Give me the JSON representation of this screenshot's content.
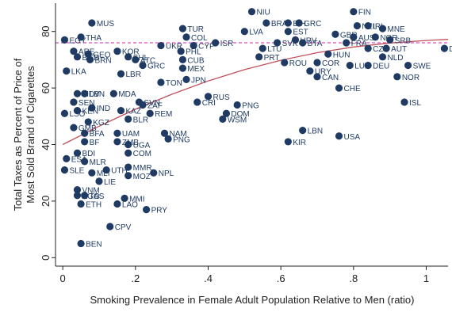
{
  "chart_data": {
    "type": "scatter",
    "xlabel": "Smoking Prevalence in Female Adult Population Relative to Men (ratio)",
    "ylabel_lines": [
      "Total Taxes as Percent of Price of",
      "Most Sold Brand of Cigarettes"
    ],
    "xlim": [
      -0.02,
      1.06
    ],
    "ylim": [
      -3,
      90
    ],
    "x_ticks": [
      {
        "v": 0,
        "label": "0"
      },
      {
        "v": 0.2,
        "label": ".2"
      },
      {
        "v": 0.4,
        "label": ".4"
      },
      {
        "v": 0.6,
        "label": ".6"
      },
      {
        "v": 0.8,
        "label": ".8"
      },
      {
        "v": 1,
        "label": "1"
      }
    ],
    "y_ticks": [
      {
        "v": 0,
        "label": "0"
      },
      {
        "v": 20,
        "label": "20"
      },
      {
        "v": 40,
        "label": "40"
      },
      {
        "v": 60,
        "label": "60"
      },
      {
        "v": 80,
        "label": "80"
      }
    ],
    "grid": false,
    "reference_line": {
      "y": 76,
      "color": "#d94fc4",
      "style": "dashed"
    },
    "fit_curve": {
      "color": "#c0505a",
      "x": [
        0,
        0.1,
        0.2,
        0.3,
        0.4,
        0.5,
        0.6,
        0.7,
        0.8,
        0.9,
        1.0,
        1.06
      ],
      "y": [
        40,
        46.5,
        52.5,
        57.8,
        62.5,
        66.5,
        69.8,
        72.5,
        74.5,
        75.9,
        76.8,
        77.2
      ]
    },
    "marker_color": "#1f3b63",
    "points": [
      {
        "x": 0.08,
        "y": 83,
        "label": "MUS"
      },
      {
        "x": 0.05,
        "y": 78,
        "label": "THA"
      },
      {
        "x": 0.005,
        "y": 77,
        "label": "EGY"
      },
      {
        "x": 0.03,
        "y": 73,
        "label": "ARE"
      },
      {
        "x": 0.04,
        "y": 71,
        "label": "BGD"
      },
      {
        "x": 0.07,
        "y": 72,
        "label": "GEO"
      },
      {
        "x": 0.075,
        "y": 70,
        "label": "BRN"
      },
      {
        "x": 0.01,
        "y": 66,
        "label": "LKA"
      },
      {
        "x": 0.15,
        "y": 73,
        "label": "KOR"
      },
      {
        "x": 0.18,
        "y": 71,
        "label": "SHL"
      },
      {
        "x": 0.2,
        "y": 70,
        "label": "ATC"
      },
      {
        "x": 0.22,
        "y": 68,
        "label": "GRC2"
      },
      {
        "x": 0.16,
        "y": 65,
        "label": "LBR"
      },
      {
        "x": 0.27,
        "y": 75,
        "label": "UKR"
      },
      {
        "x": 0.33,
        "y": 81,
        "label": "TUR"
      },
      {
        "x": 0.34,
        "y": 78,
        "label": "COL"
      },
      {
        "x": 0.36,
        "y": 75,
        "label": "CYP"
      },
      {
        "x": 0.42,
        "y": 76,
        "label": "ISR"
      },
      {
        "x": 0.325,
        "y": 73,
        "label": "PHL"
      },
      {
        "x": 0.33,
        "y": 70,
        "label": "CUB"
      },
      {
        "x": 0.33,
        "y": 67,
        "label": "MEX"
      },
      {
        "x": 0.34,
        "y": 63,
        "label": "JPN"
      },
      {
        "x": 0.27,
        "y": 62,
        "label": "TON"
      },
      {
        "x": 0.04,
        "y": 58,
        "label": "MDV"
      },
      {
        "x": 0.06,
        "y": 58,
        "label": "LBN2"
      },
      {
        "x": 0.14,
        "y": 58,
        "label": "MDA"
      },
      {
        "x": 0.03,
        "y": 55,
        "label": "SEN"
      },
      {
        "x": 0.08,
        "y": 53,
        "label": "IND"
      },
      {
        "x": 0.04,
        "y": 52,
        "label": "KEN"
      },
      {
        "x": 0.005,
        "y": 51,
        "label": "LSO"
      },
      {
        "x": 0.16,
        "y": 52,
        "label": "KAZ"
      },
      {
        "x": 0.21,
        "y": 55,
        "label": "SVN"
      },
      {
        "x": 0.22,
        "y": 54,
        "label": "ZAF"
      },
      {
        "x": 0.18,
        "y": 49,
        "label": "BLR"
      },
      {
        "x": 0.24,
        "y": 51,
        "label": "REM"
      },
      {
        "x": 0.07,
        "y": 48,
        "label": "KGZ"
      },
      {
        "x": 0.03,
        "y": 46,
        "label": "GMB"
      },
      {
        "x": 0.06,
        "y": 44,
        "label": "BFA"
      },
      {
        "x": 0.06,
        "y": 41,
        "label": "BF"
      },
      {
        "x": 0.15,
        "y": 41,
        "label": "ZMB"
      },
      {
        "x": 0.18,
        "y": 40,
        "label": "UGA"
      },
      {
        "x": 0.18,
        "y": 37,
        "label": "COM"
      },
      {
        "x": 0.15,
        "y": 44,
        "label": "UAM"
      },
      {
        "x": 0.28,
        "y": 44,
        "label": "NAM"
      },
      {
        "x": 0.29,
        "y": 42,
        "label": "PNG2"
      },
      {
        "x": 0.37,
        "y": 55,
        "label": "CRI"
      },
      {
        "x": 0.4,
        "y": 57,
        "label": "RUS"
      },
      {
        "x": 0.48,
        "y": 54,
        "label": "PNG"
      },
      {
        "x": 0.45,
        "y": 51,
        "label": "DOM"
      },
      {
        "x": 0.44,
        "y": 49,
        "label": "WSM"
      },
      {
        "x": 0.01,
        "y": 35,
        "label": "ESA"
      },
      {
        "x": 0.04,
        "y": 37,
        "label": "BDI"
      },
      {
        "x": 0.06,
        "y": 34,
        "label": "MLR"
      },
      {
        "x": 0.005,
        "y": 31,
        "label": "SLE"
      },
      {
        "x": 0.08,
        "y": 30,
        "label": "MLI"
      },
      {
        "x": 0.1,
        "y": 27,
        "label": "LIE"
      },
      {
        "x": 0.12,
        "y": 31,
        "label": "UTH"
      },
      {
        "x": 0.18,
        "y": 32,
        "label": "MMR"
      },
      {
        "x": 0.18,
        "y": 29,
        "label": "MOZ"
      },
      {
        "x": 0.25,
        "y": 30,
        "label": "NPL"
      },
      {
        "x": 0.04,
        "y": 24,
        "label": "VNM"
      },
      {
        "x": 0.06,
        "y": 22,
        "label": "TAS"
      },
      {
        "x": 0.04,
        "y": 22,
        "label": "AGO"
      },
      {
        "x": 0.05,
        "y": 19,
        "label": "ETH"
      },
      {
        "x": 0.17,
        "y": 21,
        "label": "MMI"
      },
      {
        "x": 0.15,
        "y": 19,
        "label": "LAO"
      },
      {
        "x": 0.23,
        "y": 17,
        "label": "PRY"
      },
      {
        "x": 0.13,
        "y": 11,
        "label": "CPV"
      },
      {
        "x": 0.05,
        "y": 5,
        "label": "BEN"
      },
      {
        "x": 0.52,
        "y": 87,
        "label": "NIU"
      },
      {
        "x": 0.56,
        "y": 83,
        "label": "BRA"
      },
      {
        "x": 0.62,
        "y": 83,
        "label": "BIH"
      },
      {
        "x": 0.65,
        "y": 83,
        "label": "GRC"
      },
      {
        "x": 0.62,
        "y": 80,
        "label": "EST"
      },
      {
        "x": 0.5,
        "y": 80,
        "label": "LVA"
      },
      {
        "x": 0.64,
        "y": 77,
        "label": "HRV"
      },
      {
        "x": 0.59,
        "y": 76,
        "label": "SVK"
      },
      {
        "x": 0.66,
        "y": 76,
        "label": "BTA"
      },
      {
        "x": 0.55,
        "y": 74,
        "label": "LTU"
      },
      {
        "x": 0.54,
        "y": 71,
        "label": "PRT"
      },
      {
        "x": 0.61,
        "y": 69,
        "label": "ROU"
      },
      {
        "x": 0.7,
        "y": 69,
        "label": "COR"
      },
      {
        "x": 0.68,
        "y": 66,
        "label": "URY"
      },
      {
        "x": 0.7,
        "y": 64,
        "label": "CAN"
      },
      {
        "x": 0.73,
        "y": 72,
        "label": "HUN"
      },
      {
        "x": 0.79,
        "y": 68,
        "label": "LUX"
      },
      {
        "x": 0.84,
        "y": 68,
        "label": "DEU"
      },
      {
        "x": 0.8,
        "y": 87,
        "label": "FIN"
      },
      {
        "x": 0.81,
        "y": 82,
        "label": "NZL"
      },
      {
        "x": 0.84,
        "y": 82,
        "label": "IRL"
      },
      {
        "x": 0.88,
        "y": 81,
        "label": "MNE"
      },
      {
        "x": 0.8,
        "y": 78,
        "label": "AUS"
      },
      {
        "x": 0.86,
        "y": 78,
        "label": "NOR2"
      },
      {
        "x": 0.9,
        "y": 77,
        "label": "SRB"
      },
      {
        "x": 0.89,
        "y": 74,
        "label": "AUT"
      },
      {
        "x": 0.84,
        "y": 74,
        "label": "CZE"
      },
      {
        "x": 0.88,
        "y": 71,
        "label": "NLD"
      },
      {
        "x": 0.75,
        "y": 79,
        "label": "GBR"
      },
      {
        "x": 0.78,
        "y": 76,
        "label": "FRA"
      },
      {
        "x": 0.76,
        "y": 60,
        "label": "CHE"
      },
      {
        "x": 0.92,
        "y": 64,
        "label": "NOR"
      },
      {
        "x": 0.95,
        "y": 68,
        "label": "SWE"
      },
      {
        "x": 1.05,
        "y": 74,
        "label": "DNK"
      },
      {
        "x": 0.94,
        "y": 55,
        "label": "ISL"
      },
      {
        "x": 0.66,
        "y": 45,
        "label": "LBN"
      },
      {
        "x": 0.62,
        "y": 41,
        "label": "KIR"
      },
      {
        "x": 0.76,
        "y": 43,
        "label": "USA"
      }
    ]
  }
}
